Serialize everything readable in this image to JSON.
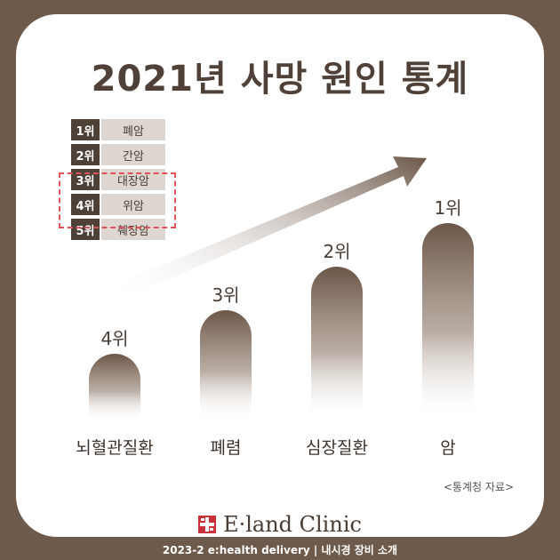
{
  "title": "2021년 사망 원인 통계",
  "ranking_table": [
    {
      "rank": "1위",
      "name": "폐암"
    },
    {
      "rank": "2위",
      "name": "간암"
    },
    {
      "rank": "3위",
      "name": "대장암"
    },
    {
      "rank": "4위",
      "name": "위암"
    },
    {
      "rank": "5위",
      "name": "췌장암"
    }
  ],
  "chart_data": {
    "type": "bar",
    "categories": [
      "뇌혈관질환",
      "폐렴",
      "심장질환",
      "암"
    ],
    "data_labels": [
      "4위",
      "3위",
      "2위",
      "1위"
    ],
    "ranks": [
      4,
      3,
      2,
      1
    ],
    "title": "2021년 사망 원인 통계",
    "xlabel": "",
    "ylabel": ""
  },
  "source": "<통계청 자료>",
  "brand": "E·land Clinic",
  "footer": "2023-2 e:health delivery | 내시경 장비 소개",
  "colors": {
    "frame": "#6e5a4b",
    "bar": "#6b5647",
    "title": "#4f4137",
    "table_rank_bg": "#4c4037",
    "table_name_bg": "#ddd6d1",
    "highlight": "#e0525a",
    "logo": "#c9323a"
  },
  "icons": {
    "brand_logo": "cross-logo-icon",
    "arrow": "trend-arrow-icon"
  }
}
